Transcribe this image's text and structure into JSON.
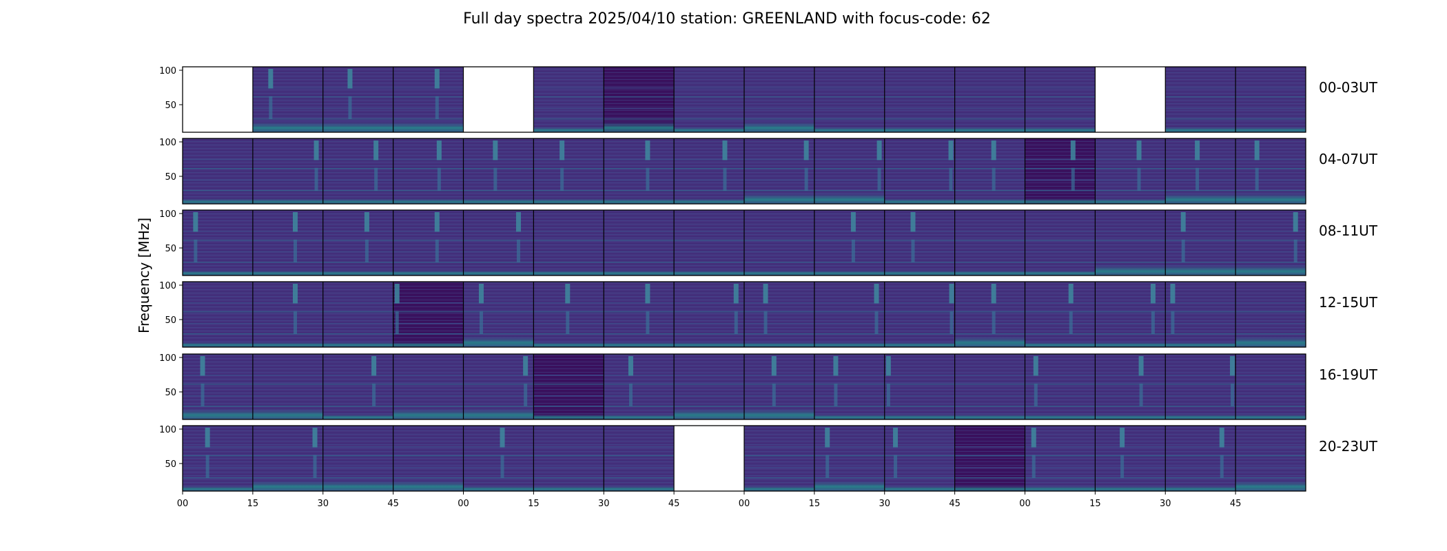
{
  "chart_data": {
    "type": "heatmap",
    "title": "Full day spectra 2025/04/10 station: GREENLAND with focus-code: 62",
    "ylabel": "Frequency [MHz]",
    "ylim": [
      10,
      105
    ],
    "yticks": [
      50,
      100
    ],
    "xticks": [
      "00",
      "15",
      "30",
      "45",
      "00",
      "15",
      "30",
      "45",
      "00",
      "15",
      "30",
      "45",
      "00",
      "15",
      "30",
      "45"
    ],
    "panels_per_row": 16,
    "panel_minutes": 15,
    "colormap": "viridis",
    "rows": [
      {
        "label": "00-03UT",
        "missing": [
          0,
          4,
          13
        ],
        "bursts": [
          {
            "panel": 1,
            "pos": 0.25
          },
          {
            "panel": 2,
            "pos": 0.38
          },
          {
            "panel": 3,
            "pos": 0.62
          }
        ],
        "dark": [
          6
        ],
        "low_band": [
          1,
          2,
          3,
          6,
          8
        ]
      },
      {
        "label": "04-07UT",
        "missing": [],
        "bursts": [
          {
            "panel": 1,
            "pos": 0.9
          },
          {
            "panel": 2,
            "pos": 0.75
          },
          {
            "panel": 3,
            "pos": 0.65
          },
          {
            "panel": 4,
            "pos": 0.45
          },
          {
            "panel": 5,
            "pos": 0.4
          },
          {
            "panel": 6,
            "pos": 0.62
          },
          {
            "panel": 7,
            "pos": 0.72
          },
          {
            "panel": 8,
            "pos": 0.88
          },
          {
            "panel": 9,
            "pos": 0.92
          },
          {
            "panel": 10,
            "pos": 0.94
          },
          {
            "panel": 11,
            "pos": 0.55
          },
          {
            "panel": 12,
            "pos": 0.68
          },
          {
            "panel": 13,
            "pos": 0.62
          },
          {
            "panel": 14,
            "pos": 0.45
          },
          {
            "panel": 15,
            "pos": 0.3
          }
        ],
        "dark": [
          12
        ],
        "low_band": [
          8,
          9,
          14,
          15
        ]
      },
      {
        "label": "08-11UT",
        "missing": [],
        "bursts": [
          {
            "panel": 0,
            "pos": 0.18
          },
          {
            "panel": 1,
            "pos": 0.6
          },
          {
            "panel": 2,
            "pos": 0.62
          },
          {
            "panel": 3,
            "pos": 0.62
          },
          {
            "panel": 4,
            "pos": 0.78
          },
          {
            "panel": 9,
            "pos": 0.55
          },
          {
            "panel": 10,
            "pos": 0.4
          },
          {
            "panel": 14,
            "pos": 0.25
          },
          {
            "panel": 15,
            "pos": 0.85
          }
        ],
        "dark": [],
        "low_band": [
          13,
          14,
          15
        ]
      },
      {
        "label": "12-15UT",
        "missing": [],
        "bursts": [
          {
            "panel": 1,
            "pos": 0.6
          },
          {
            "panel": 3,
            "pos": 0.05
          },
          {
            "panel": 4,
            "pos": 0.25
          },
          {
            "panel": 5,
            "pos": 0.48
          },
          {
            "panel": 6,
            "pos": 0.62
          },
          {
            "panel": 7,
            "pos": 0.88
          },
          {
            "panel": 8,
            "pos": 0.3
          },
          {
            "panel": 9,
            "pos": 0.88
          },
          {
            "panel": 10,
            "pos": 0.95
          },
          {
            "panel": 11,
            "pos": 0.55
          },
          {
            "panel": 12,
            "pos": 0.65
          },
          {
            "panel": 13,
            "pos": 0.82
          },
          {
            "panel": 14,
            "pos": 0.1
          }
        ],
        "dark": [
          3
        ],
        "low_band": [
          4,
          11,
          15
        ]
      },
      {
        "label": "16-19UT",
        "missing": [],
        "bursts": [
          {
            "panel": 0,
            "pos": 0.28
          },
          {
            "panel": 2,
            "pos": 0.72
          },
          {
            "panel": 4,
            "pos": 0.88
          },
          {
            "panel": 6,
            "pos": 0.38
          },
          {
            "panel": 8,
            "pos": 0.42
          },
          {
            "panel": 9,
            "pos": 0.3
          },
          {
            "panel": 10,
            "pos": 0.05
          },
          {
            "panel": 12,
            "pos": 0.15
          },
          {
            "panel": 13,
            "pos": 0.65
          },
          {
            "panel": 14,
            "pos": 0.95
          }
        ],
        "dark": [
          5
        ],
        "low_band": [
          0,
          1,
          3,
          4,
          7,
          8
        ]
      },
      {
        "label": "20-23UT",
        "missing": [
          7
        ],
        "bursts": [
          {
            "panel": 0,
            "pos": 0.35
          },
          {
            "panel": 1,
            "pos": 0.88
          },
          {
            "panel": 4,
            "pos": 0.55
          },
          {
            "panel": 9,
            "pos": 0.18
          },
          {
            "panel": 10,
            "pos": 0.15
          },
          {
            "panel": 12,
            "pos": 0.12
          },
          {
            "panel": 13,
            "pos": 0.38
          },
          {
            "panel": 14,
            "pos": 0.8
          }
        ],
        "dark": [
          11
        ],
        "low_band": [
          1,
          2,
          3,
          9,
          15
        ]
      }
    ]
  }
}
